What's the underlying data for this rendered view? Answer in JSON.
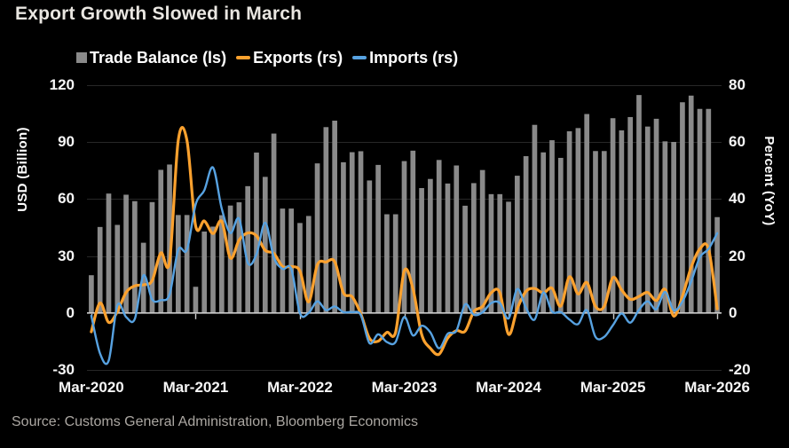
{
  "title": "Export Growth Slowed in March",
  "source": "Source: Customs General Administration, Bloomberg Economics",
  "legend": [
    {
      "label": "Trade Balance (ls)",
      "marker": "square",
      "color": "#8a8a8a"
    },
    {
      "label": "Exports (rs)",
      "marker": "line",
      "color": "#fba12e"
    },
    {
      "label": "Imports (rs)",
      "marker": "line",
      "color": "#57a2e1"
    }
  ],
  "colors": {
    "background": "#000000",
    "bar": "#8a8a8a",
    "exports_line": "#fba12e",
    "imports_line": "#57a2e1",
    "grid": "#272727",
    "zero_axis": "#cdcdcd",
    "title_text": "#e9e6e1",
    "tick_text": "#f7f7f7",
    "source_text": "#aba7a2"
  },
  "chart_data": {
    "type": "combo",
    "title": "Export Growth Slowed in March",
    "grid": "horizontal",
    "legend_position": "top",
    "categories": [
      "Mar-2020",
      "Apr-2020",
      "May-2020",
      "Jun-2020",
      "Jul-2020",
      "Aug-2020",
      "Sep-2020",
      "Oct-2020",
      "Nov-2020",
      "Dec-2020",
      "Jan-2021",
      "Feb-2021",
      "Mar-2021",
      "Apr-2021",
      "May-2021",
      "Jun-2021",
      "Jul-2021",
      "Aug-2021",
      "Sep-2021",
      "Oct-2021",
      "Nov-2021",
      "Dec-2021",
      "Jan-2022",
      "Feb-2022",
      "Mar-2022",
      "Apr-2022",
      "May-2022",
      "Jun-2022",
      "Jul-2022",
      "Aug-2022",
      "Sep-2022",
      "Oct-2022",
      "Nov-2022",
      "Dec-2022",
      "Jan-2023",
      "Feb-2023",
      "Mar-2023",
      "Apr-2023",
      "May-2023",
      "Jun-2023",
      "Jul-2023",
      "Aug-2023",
      "Sep-2023",
      "Oct-2023",
      "Nov-2023",
      "Dec-2023",
      "Jan-2024",
      "Feb-2024",
      "Mar-2024",
      "Apr-2024",
      "May-2024",
      "Jun-2024",
      "Jul-2024",
      "Aug-2024",
      "Sep-2024",
      "Oct-2024",
      "Nov-2024",
      "Dec-2024",
      "Jan-2025",
      "Feb-2025",
      "Mar-2025",
      "Apr-2025",
      "May-2025",
      "Jun-2025",
      "Jul-2025",
      "Aug-2025",
      "Sep-2025",
      "Oct-2025",
      "Nov-2025",
      "Dec-2025",
      "Jan-2026",
      "Feb-2026",
      "Mar-2026"
    ],
    "x_tick_labels": [
      "Mar-2020",
      "Mar-2021",
      "Mar-2022",
      "Mar-2023",
      "Mar-2024",
      "Mar-2025",
      "Mar-2026"
    ],
    "x_tick_indices": [
      0,
      12,
      24,
      36,
      48,
      60,
      72
    ],
    "left_axis": {
      "label": "USD (Billion)",
      "ticks": [
        120,
        90,
        60,
        30,
        0,
        -30
      ],
      "min": -30,
      "max": 120
    },
    "right_axis": {
      "label": "Percent (YoY)",
      "ticks": [
        80,
        60,
        40,
        20,
        0,
        -20
      ],
      "min": -20,
      "max": 80
    },
    "series": [
      {
        "name": "Trade Balance (ls)",
        "type": "bar",
        "axis": "left",
        "color": "#8a8a8a",
        "values": [
          19.9,
          45.3,
          62.9,
          46.4,
          62.3,
          58.9,
          37.0,
          58.4,
          75.4,
          78.2,
          51.6,
          51.6,
          13.8,
          42.9,
          45.5,
          51.5,
          56.6,
          58.3,
          66.8,
          84.5,
          71.7,
          94.5,
          55.0,
          55.0,
          47.4,
          51.1,
          78.8,
          97.9,
          101.3,
          79.4,
          84.7,
          85.2,
          69.8,
          78.0,
          52.0,
          52.0,
          80.0,
          85.5,
          65.8,
          70.6,
          80.6,
          68.2,
          77.7,
          56.5,
          68.4,
          75.3,
          62.6,
          62.6,
          58.6,
          72.3,
          82.6,
          99.1,
          84.6,
          91.0,
          81.7,
          95.7,
          97.4,
          104.8,
          85.3,
          85.3,
          102.6,
          96.2,
          103.2,
          114.8,
          98.2,
          102.3,
          90.4,
          90.1,
          111.0,
          114.5,
          107.5,
          107.5,
          50.5
        ]
      },
      {
        "name": "Exports (rs)",
        "type": "line",
        "axis": "right",
        "color": "#fba12e",
        "values": [
          -6.6,
          3.5,
          -3.3,
          0.5,
          7.2,
          9.5,
          9.9,
          11.4,
          21.1,
          18.1,
          60.6,
          60.6,
          30.6,
          32.3,
          27.9,
          32.2,
          19.3,
          25.6,
          28.1,
          27.1,
          22.0,
          20.9,
          16.3,
          16.3,
          14.7,
          3.9,
          16.9,
          17.9,
          18.0,
          7.1,
          5.7,
          -0.3,
          -8.9,
          -9.9,
          -6.8,
          -6.8,
          14.8,
          8.5,
          -7.5,
          -12.4,
          -14.5,
          -8.8,
          -6.2,
          -6.4,
          0.5,
          2.3,
          7.1,
          7.1,
          -7.5,
          1.5,
          7.6,
          8.6,
          7.0,
          8.7,
          2.4,
          12.7,
          6.7,
          10.7,
          2.3,
          2.3,
          12.4,
          8.1,
          4.8,
          5.8,
          7.2,
          4.4,
          8.3,
          -1.1,
          5.9,
          16.0,
          22.5,
          22.5,
          1.5
        ]
      },
      {
        "name": "Imports (rs)",
        "type": "line",
        "axis": "right",
        "color": "#57a2e1",
        "values": [
          -1.0,
          -14.2,
          -16.7,
          2.7,
          -1.4,
          -2.1,
          13.2,
          4.7,
          4.5,
          6.5,
          22.2,
          22.2,
          38.1,
          43.1,
          51.1,
          36.7,
          28.1,
          33.1,
          17.6,
          20.6,
          31.7,
          19.5,
          15.5,
          15.5,
          -0.1,
          0.0,
          4.1,
          1.0,
          2.3,
          0.3,
          0.3,
          -0.7,
          -10.6,
          -7.5,
          -10.2,
          -10.2,
          -1.4,
          -7.9,
          -4.5,
          -6.8,
          -12.4,
          -7.3,
          -6.2,
          3.0,
          -0.6,
          0.2,
          3.5,
          3.5,
          -1.9,
          8.4,
          1.8,
          -2.3,
          7.2,
          0.5,
          0.3,
          -2.3,
          -3.9,
          1.0,
          -8.4,
          -8.4,
          -4.3,
          -0.2,
          -3.4,
          1.1,
          4.1,
          1.3,
          7.4,
          1.0,
          4.0,
          11.0,
          19.5,
          22.5,
          28.0
        ]
      }
    ]
  }
}
